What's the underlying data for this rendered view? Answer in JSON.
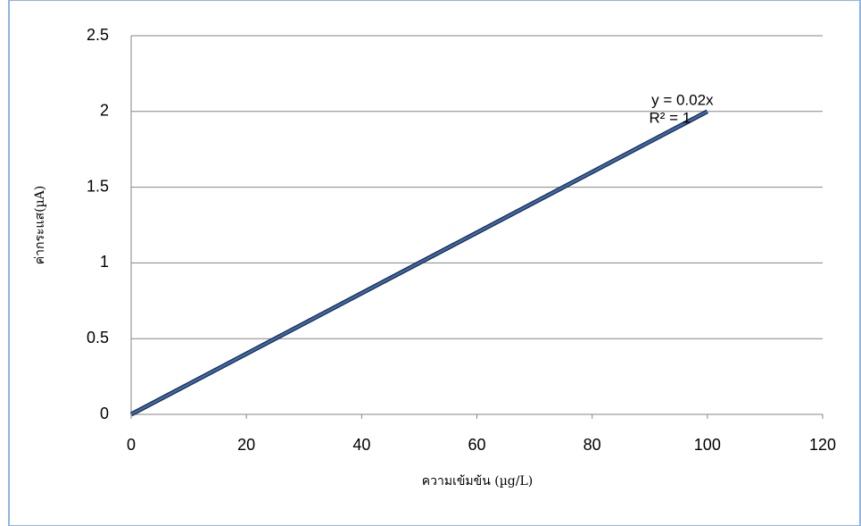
{
  "chart_data": {
    "type": "line",
    "x": [
      0,
      100
    ],
    "values": [
      0,
      2
    ],
    "color": "#3a6ab0",
    "xlim": [
      0,
      120
    ],
    "xticks": [
      0,
      20,
      40,
      60,
      80,
      100,
      120
    ],
    "ylim": [
      0,
      2.5
    ],
    "yticks": [
      0,
      0.5,
      1,
      1.5,
      2,
      2.5
    ],
    "grid": true,
    "xlabel": "ความเข้มข้น (µg/L)",
    "ylabel": "ค่ากระแส(µA)",
    "annotations": [
      "y = 0.02x",
      "R² = 1"
    ]
  }
}
